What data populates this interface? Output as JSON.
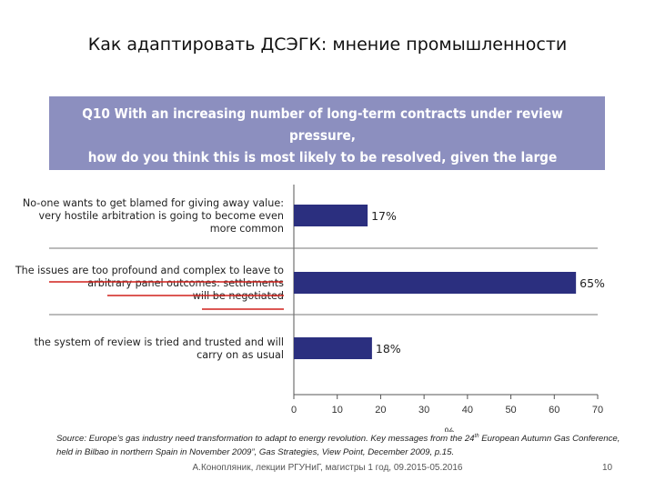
{
  "slide": {
    "title": "Как адаптировать ДСЭГК: мнение промышленности",
    "question": "Q10  With an increasing number of long-term contracts under review pressure,\nhow do you think this is most likely to be resolved, given the large amount\nof value embedded in them?",
    "source_part1": "Source: Europe’s gas industry need transformation to adapt to energy revolution. Key messages from the 24",
    "source_sup": "th",
    "source_part2": " European Autumn Gas Conference, held in Bilbao in northern Spain in November 2009”, Gas Strategies, View Point, December 2009, p.15.",
    "footer": "А.Конопляник, лекции РГУНиГ, магистры 1 год, 09.2015-05.2016",
    "page_number": "10"
  },
  "chart_data": {
    "type": "bar",
    "orientation": "horizontal",
    "categories": [
      [
        "No-one wants to get blamed for giving away value:",
        "very hostile arbitration is going to become even",
        "more common"
      ],
      [
        "The issues are too profound and complex to leave to",
        "arbitrary panel outcomes: settlements",
        "will be negotiated"
      ],
      [
        "the system of review is tried and trusted and will",
        "carry on as usual"
      ]
    ],
    "values": [
      17,
      65,
      18
    ],
    "value_labels": [
      "17%",
      "65%",
      "18%"
    ],
    "highlighted_category_index": 1,
    "xlabel": "%",
    "xlim": [
      0,
      70
    ],
    "xticks": [
      0,
      10,
      20,
      30,
      40,
      50,
      60,
      70
    ],
    "colors": {
      "bar": "#2b2f7f",
      "highlight": "#d0211b",
      "axis": "#555555",
      "separator": "#777777"
    }
  }
}
